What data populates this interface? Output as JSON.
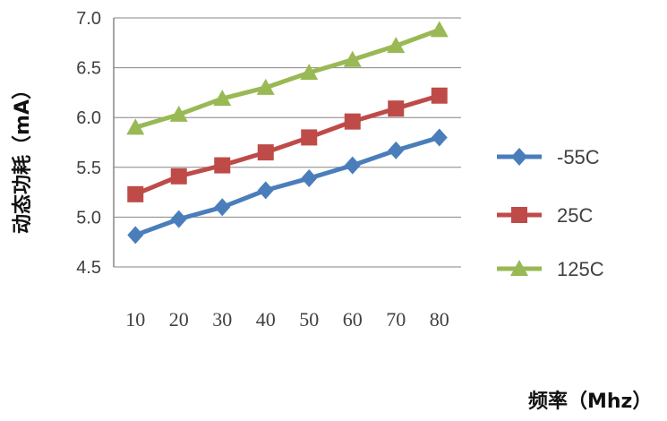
{
  "chart_data": {
    "type": "line",
    "title": "",
    "xlabel": "频率（Mhz）",
    "ylabel": "动态功耗（mA）",
    "categories": [
      "10",
      "20",
      "30",
      "40",
      "50",
      "60",
      "70",
      "80"
    ],
    "ylim": [
      4.5,
      7.0
    ],
    "yticks": [
      "4.5",
      "5.0",
      "5.5",
      "6.0",
      "6.5",
      "7.0"
    ],
    "grid": "horizontal",
    "legend": "right",
    "series": [
      {
        "name": "-55C",
        "color": "#4a7ebb",
        "marker": "diamond",
        "values": [
          4.82,
          4.98,
          5.1,
          5.27,
          5.39,
          5.52,
          5.67,
          5.8
        ]
      },
      {
        "name": "25C",
        "color": "#be4b48",
        "marker": "square",
        "values": [
          5.23,
          5.41,
          5.52,
          5.65,
          5.8,
          5.96,
          6.09,
          6.22
        ]
      },
      {
        "name": "125C",
        "color": "#98b954",
        "marker": "triangle",
        "values": [
          5.9,
          6.03,
          6.19,
          6.3,
          6.45,
          6.58,
          6.72,
          6.88
        ]
      }
    ]
  }
}
